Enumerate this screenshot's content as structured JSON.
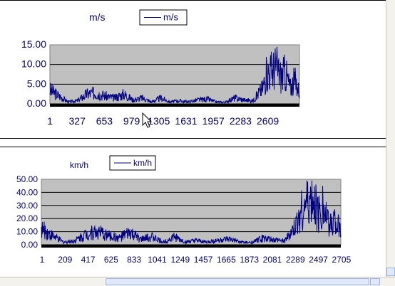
{
  "colors": {
    "plot_bg": "#c0c0c0",
    "series": "#000080",
    "axis": "#000000",
    "label": "#000080"
  },
  "icons": {
    "cursor": "mouse-pointer-icon"
  },
  "chart_data": [
    {
      "type": "line",
      "title": "m/s",
      "legend": {
        "position": "top",
        "label": "m/s"
      },
      "yticks": [
        "15.00",
        "10.00",
        "5.00",
        "0.00"
      ],
      "ylim": [
        0,
        15
      ],
      "xticks": [
        "1",
        "327",
        "653",
        "979",
        "1305",
        "1631",
        "1957",
        "2283",
        "2609"
      ],
      "xlim": [
        1,
        2700
      ],
      "grid": true,
      "series": [
        {
          "name": "m/s",
          "x": [
            1,
            100,
            200,
            300,
            400,
            500,
            600,
            700,
            800,
            900,
            1000,
            1100,
            1200,
            1300,
            1400,
            1500,
            1600,
            1700,
            1800,
            1900,
            2000,
            2100,
            2200,
            2250,
            2300,
            2350,
            2400,
            2450,
            2500,
            2550,
            2600,
            2650,
            2700
          ],
          "y": [
            3.5,
            2.0,
            0.5,
            0.8,
            2.5,
            2.8,
            2.0,
            1.5,
            2.5,
            1.0,
            1.5,
            0.5,
            1.5,
            0.5,
            0.8,
            0.5,
            1.0,
            1.2,
            0.5,
            0.4,
            1.5,
            1.0,
            0.8,
            2.5,
            4.0,
            8.0,
            8.5,
            9.5,
            7.0,
            8.0,
            4.0,
            6.0,
            3.0
          ]
        }
      ]
    },
    {
      "type": "line",
      "title": "km/h",
      "legend": {
        "position": "top",
        "label": "km/h"
      },
      "yticks": [
        "50.00",
        "40.00",
        "30.00",
        "20.00",
        "10.00",
        "0.00"
      ],
      "ylim": [
        0,
        50
      ],
      "xticks": [
        "1",
        "209",
        "417",
        "625",
        "833",
        "1041",
        "1249",
        "1457",
        "1665",
        "1873",
        "2081",
        "2289",
        "2497",
        "2705"
      ],
      "xlim": [
        1,
        2705
      ],
      "grid": true,
      "series": [
        {
          "name": "km/h",
          "x": [
            1,
            100,
            200,
            300,
            400,
            500,
            600,
            700,
            800,
            900,
            1000,
            1100,
            1200,
            1300,
            1400,
            1500,
            1600,
            1700,
            1800,
            1900,
            2000,
            2100,
            2200,
            2250,
            2300,
            2350,
            2400,
            2450,
            2500,
            2550,
            2600,
            2650,
            2705
          ],
          "y": [
            12.0,
            7.0,
            2.0,
            3.0,
            8.0,
            10.0,
            7.0,
            5.0,
            9.0,
            4.0,
            6.0,
            2.0,
            6.0,
            2.0,
            3.0,
            2.0,
            3.5,
            4.0,
            2.0,
            1.5,
            5.0,
            3.5,
            3.0,
            8.0,
            14.0,
            28.0,
            30.0,
            33.0,
            25.0,
            28.0,
            14.0,
            21.0,
            10.0
          ]
        }
      ]
    }
  ]
}
